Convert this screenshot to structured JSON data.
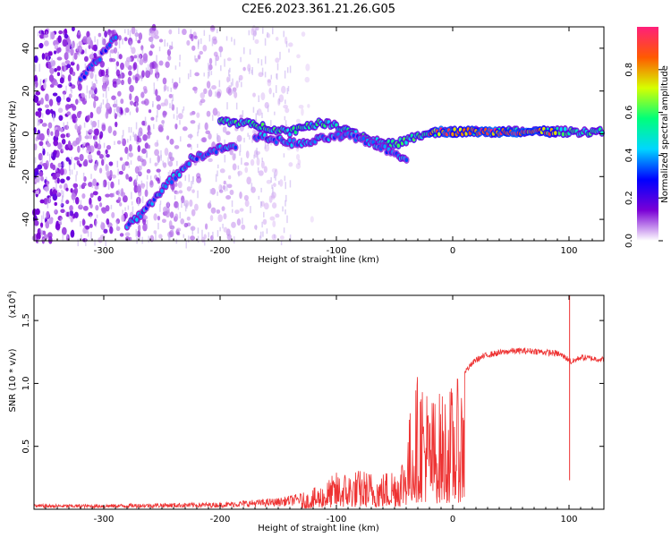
{
  "title": "C2E6.2023.361.21.26.G05",
  "chart_data": [
    {
      "type": "heatmap",
      "xlabel": "Height of straight line (km)",
      "ylabel": "Frequency (Hz)",
      "xlim": [
        -360,
        130
      ],
      "ylim": [
        -50,
        50
      ],
      "xticks": [
        -300,
        -200,
        -100,
        0,
        100
      ],
      "yticks": [
        -40,
        -20,
        0,
        20,
        40
      ],
      "colorbar": {
        "label": "Normalized spectral amplitude",
        "range": [
          0.0,
          1.0
        ],
        "ticks": [
          0.0,
          0.2,
          0.4,
          0.6,
          0.8
        ],
        "colormap": [
          "#ffffff",
          "#7a00d6",
          "#0000ff",
          "#00d6ff",
          "#00ff7a",
          "#d6ff00",
          "#ff5a00",
          "#ff1f7a"
        ]
      },
      "tracks": [
        {
          "points": [
            [
              -320,
              25
            ],
            [
              -300,
              38
            ],
            [
              -288,
              47
            ]
          ],
          "amplitude": 0.35
        },
        {
          "points": [
            [
              -280,
              -43
            ],
            [
              -265,
              -36
            ],
            [
              -250,
              -26
            ],
            [
              -235,
              -18
            ],
            [
              -225,
              -12
            ],
            [
              -210,
              -9
            ],
            [
              -200,
              -7
            ],
            [
              -185,
              -6
            ]
          ],
          "amplitude": 0.4
        },
        {
          "points": [
            [
              -200,
              6
            ],
            [
              -180,
              5
            ],
            [
              -160,
              3
            ],
            [
              -140,
              1
            ],
            [
              -125,
              4
            ],
            [
              -110,
              5
            ],
            [
              -90,
              2
            ],
            [
              -70,
              -3
            ],
            [
              -50,
              -5
            ],
            [
              -35,
              -2
            ],
            [
              -20,
              0
            ],
            [
              0,
              1
            ],
            [
              40,
              1
            ],
            [
              80,
              1
            ],
            [
              130,
              1
            ]
          ],
          "amplitude": 0.55
        },
        {
          "points": [
            [
              -170,
              -1
            ],
            [
              -150,
              -3
            ],
            [
              -130,
              -5
            ],
            [
              -110,
              -2
            ],
            [
              -90,
              -1
            ],
            [
              -70,
              -4
            ],
            [
              -55,
              -8
            ],
            [
              -38,
              -12
            ]
          ],
          "amplitude": 0.4
        },
        {
          "points": [
            [
              -20,
              1
            ],
            [
              -10,
              1
            ],
            [
              0,
              1
            ],
            [
              20,
              1
            ],
            [
              50,
              1
            ],
            [
              75,
              1
            ],
            [
              90,
              1
            ]
          ],
          "amplitude": 0.9
        }
      ]
    },
    {
      "type": "line",
      "xlabel": "Height of straight line (km)",
      "ylabel": "SNR (10 * v/v)",
      "yscale_label": "(x10",
      "yscale_exponent": "4",
      "yscale_suffix": ")",
      "xlim": [
        -360,
        130
      ],
      "ylim": [
        0,
        17000
      ],
      "xticks": [
        -300,
        -200,
        -100,
        0,
        100
      ],
      "yticks": [
        5000,
        10000,
        15000
      ],
      "ytick_labels": [
        "0.5",
        "1.0",
        "1.5"
      ],
      "color": "#ee3333",
      "envelope": [
        [
          -360,
          400
        ],
        [
          -300,
          400
        ],
        [
          -250,
          500
        ],
        [
          -200,
          550
        ],
        [
          -180,
          700
        ],
        [
          -150,
          900
        ],
        [
          -125,
          1400
        ],
        [
          -110,
          2200
        ],
        [
          -100,
          3000
        ],
        [
          -80,
          3200
        ],
        [
          -60,
          3000
        ],
        [
          -45,
          4000
        ],
        [
          -40,
          6000
        ],
        [
          -35,
          9000
        ],
        [
          -30,
          11000
        ],
        [
          -25,
          11500
        ],
        [
          -20,
          9000
        ],
        [
          -10,
          9500
        ],
        [
          0,
          10000
        ],
        [
          10,
          11000
        ],
        [
          20,
          12000
        ],
        [
          30,
          12400
        ],
        [
          50,
          12700
        ],
        [
          70,
          12700
        ],
        [
          90,
          12500
        ],
        [
          95,
          12300
        ],
        [
          100,
          12000
        ],
        [
          102,
          11800
        ],
        [
          110,
          12200
        ],
        [
          120,
          12100
        ],
        [
          130,
          12000
        ]
      ],
      "spikes": [
        {
          "x": 100.5,
          "min": 2300,
          "max": 17000
        }
      ]
    }
  ]
}
